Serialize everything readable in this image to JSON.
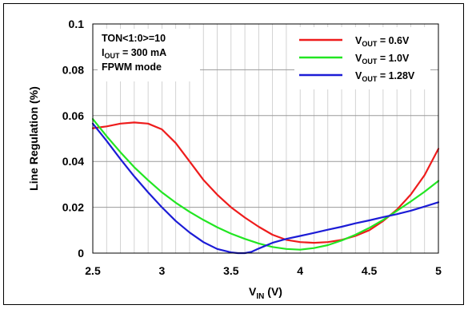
{
  "chart_data": {
    "type": "line",
    "title": "",
    "xlabel_main": "V",
    "xlabel_sub": "IN",
    "xlabel_unit": " (V)",
    "ylabel": "Line Regulation (%)",
    "xlim": [
      2.5,
      5
    ],
    "ylim": [
      0,
      0.1
    ],
    "x_ticks": [
      2.5,
      3,
      3.5,
      4,
      4.5,
      5
    ],
    "x_tick_labels": [
      "2.5",
      "3",
      "3.5",
      "4",
      "4.5",
      "5"
    ],
    "y_ticks": [
      0,
      0.02,
      0.04,
      0.06,
      0.08,
      0.1
    ],
    "y_tick_labels": [
      "0",
      "0.02",
      "0.04",
      "0.06",
      "0.08",
      "0.1"
    ],
    "grid": true,
    "legend_position": "top-right",
    "annotations": [
      {
        "main": "TON<1:0>=10",
        "sub": "",
        "rest": ""
      },
      {
        "main": "I",
        "sub": "OUT",
        "rest": " = 300 mA"
      },
      {
        "main": "FPWM mode",
        "sub": "",
        "rest": ""
      }
    ],
    "series": [
      {
        "name_main": "V",
        "name_sub": "OUT",
        "name_rest": " = 0.6V",
        "color": "#ee1c1c",
        "x": [
          2.5,
          2.6,
          2.7,
          2.8,
          2.9,
          3.0,
          3.1,
          3.2,
          3.3,
          3.4,
          3.5,
          3.6,
          3.7,
          3.8,
          3.9,
          4.0,
          4.1,
          4.2,
          4.3,
          4.4,
          4.5,
          4.6,
          4.7,
          4.8,
          4.9,
          5.0
        ],
        "y": [
          0.0545,
          0.0553,
          0.0565,
          0.057,
          0.0565,
          0.054,
          0.048,
          0.04,
          0.032,
          0.0255,
          0.02,
          0.0155,
          0.0115,
          0.008,
          0.0058,
          0.0048,
          0.0045,
          0.0048,
          0.0058,
          0.0075,
          0.01,
          0.014,
          0.019,
          0.0255,
          0.034,
          0.0455
        ]
      },
      {
        "name_main": "V",
        "name_sub": "OUT",
        "name_rest": " = 1.0V",
        "color": "#22e622",
        "x": [
          2.5,
          2.6,
          2.7,
          2.8,
          2.9,
          3.0,
          3.1,
          3.2,
          3.3,
          3.4,
          3.5,
          3.6,
          3.7,
          3.8,
          3.9,
          4.0,
          4.1,
          4.2,
          4.3,
          4.4,
          4.5,
          4.6,
          4.7,
          4.8,
          4.9,
          5.0
        ],
        "y": [
          0.0585,
          0.051,
          0.044,
          0.0375,
          0.0318,
          0.0265,
          0.022,
          0.018,
          0.0145,
          0.0113,
          0.0085,
          0.0062,
          0.0042,
          0.0027,
          0.0018,
          0.0015,
          0.0022,
          0.0035,
          0.0055,
          0.008,
          0.011,
          0.0145,
          0.0185,
          0.0225,
          0.0268,
          0.0315
        ]
      },
      {
        "name_main": "V",
        "name_sub": "OUT",
        "name_rest": " = 1.28V",
        "color": "#1c1cd6",
        "x": [
          2.5,
          2.6,
          2.7,
          2.8,
          2.9,
          3.0,
          3.1,
          3.2,
          3.3,
          3.4,
          3.5,
          3.55,
          3.6,
          3.65,
          3.7,
          3.8,
          3.9,
          4.0,
          4.1,
          4.2,
          4.3,
          4.4,
          4.5,
          4.6,
          4.7,
          4.8,
          4.9,
          5.0
        ],
        "y": [
          0.0565,
          0.049,
          0.041,
          0.0335,
          0.0265,
          0.02,
          0.014,
          0.009,
          0.0048,
          0.0018,
          0.0003,
          0.0,
          0.0,
          0.0006,
          0.002,
          0.0045,
          0.0062,
          0.0075,
          0.0088,
          0.0102,
          0.0115,
          0.013,
          0.0143,
          0.0157,
          0.017,
          0.0185,
          0.0203,
          0.0222
        ]
      }
    ]
  }
}
